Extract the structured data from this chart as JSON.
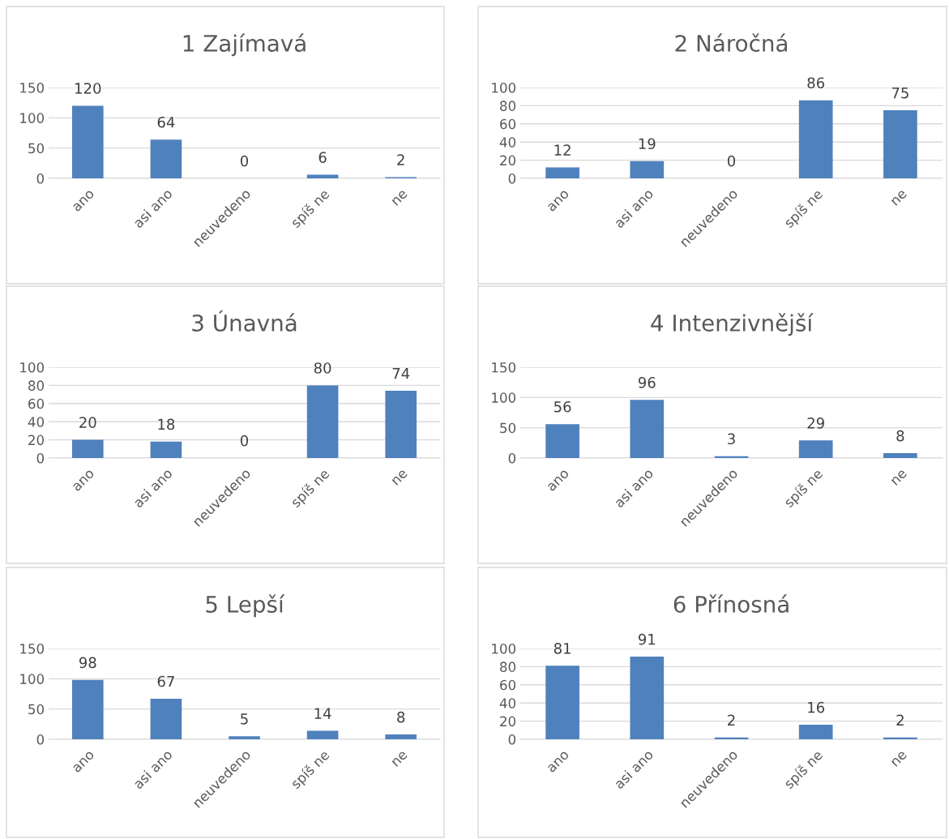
{
  "chart_data": [
    {
      "type": "bar",
      "title": "1 Zajímavá",
      "categories": [
        "ano",
        "asi ano",
        "neuvedeno",
        "spíš ne",
        "ne"
      ],
      "values": [
        120,
        64,
        0,
        6,
        2
      ],
      "color": "#4f81bd",
      "ylim": [
        0,
        150
      ],
      "yticks": [
        0,
        50,
        100,
        150
      ],
      "grid": "y",
      "data_labels": true
    },
    {
      "type": "bar",
      "title": "2 Náročná",
      "categories": [
        "ano",
        "asi ano",
        "neuvedeno",
        "spíš ne",
        "ne"
      ],
      "values": [
        12,
        19,
        0,
        86,
        75
      ],
      "color": "#4f81bd",
      "ylim": [
        0,
        100
      ],
      "yticks": [
        0,
        20,
        40,
        60,
        80,
        100
      ],
      "grid": "y",
      "data_labels": true
    },
    {
      "type": "bar",
      "title": "3 Únavná",
      "categories": [
        "ano",
        "asi ano",
        "neuvedeno",
        "spíš ne",
        "ne"
      ],
      "values": [
        20,
        18,
        0,
        80,
        74
      ],
      "color": "#4f81bd",
      "ylim": [
        0,
        100
      ],
      "yticks": [
        0,
        20,
        40,
        60,
        80,
        100
      ],
      "grid": "y",
      "data_labels": true
    },
    {
      "type": "bar",
      "title": "4 Intenzivnější",
      "categories": [
        "ano",
        "asi ano",
        "neuvedeno",
        "spíš ne",
        "ne"
      ],
      "values": [
        56,
        96,
        3,
        29,
        8
      ],
      "color": "#4f81bd",
      "ylim": [
        0,
        150
      ],
      "yticks": [
        0,
        50,
        100,
        150
      ],
      "grid": "y",
      "data_labels": true
    },
    {
      "type": "bar",
      "title": "5 Lepší",
      "categories": [
        "ano",
        "asi ano",
        "neuvedeno",
        "spíš ne",
        "ne"
      ],
      "values": [
        98,
        67,
        5,
        14,
        8
      ],
      "color": "#4f81bd",
      "ylim": [
        0,
        150
      ],
      "yticks": [
        0,
        50,
        100,
        150
      ],
      "grid": "y",
      "data_labels": true
    },
    {
      "type": "bar",
      "title": "6 Přínosná",
      "categories": [
        "ano",
        "asi ano",
        "neuvedeno",
        "spíš ne",
        "ne"
      ],
      "values": [
        81,
        91,
        2,
        16,
        2
      ],
      "color": "#4f81bd",
      "ylim": [
        0,
        100
      ],
      "yticks": [
        0,
        20,
        40,
        60,
        80,
        100
      ],
      "grid": "y",
      "data_labels": true
    }
  ]
}
